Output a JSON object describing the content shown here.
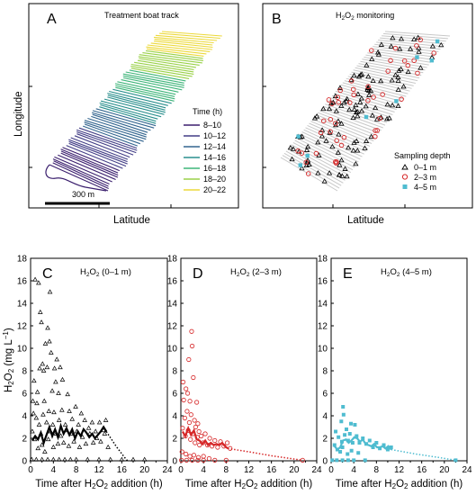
{
  "top_panels": [
    {
      "letter": "A",
      "title": "Treatment boat track",
      "xlabel": "Latitude",
      "ylabel": "Longitude",
      "legend_title": "Time  (h)",
      "scalebar_label": "300 m",
      "time_bins": [
        {
          "label": "8–10",
          "color": "#3b1f6e"
        },
        {
          "label": "10–12",
          "color": "#423d86"
        },
        {
          "label": "12–14",
          "color": "#33658f"
        },
        {
          "label": "14–16",
          "color": "#2a8f8d"
        },
        {
          "label": "16–18",
          "color": "#3fb57a"
        },
        {
          "label": "18–20",
          "color": "#9ad149"
        },
        {
          "label": "20–22",
          "color": "#ecd93a"
        }
      ]
    },
    {
      "letter": "B",
      "title_main": "H",
      "title_sub1": "2",
      "title_mid": "O",
      "title_sub2": "2",
      "title_rest": " monitoring",
      "xlabel": "Latitude",
      "legend_title": "Sampling depth",
      "depths": [
        {
          "label": "0–1 m",
          "marker": "triangle",
          "color": "#000000"
        },
        {
          "label": "2–3 m",
          "marker": "circle",
          "color": "#d62728"
        },
        {
          "label": "4–5 m",
          "marker": "square",
          "color": "#4fbcd0"
        }
      ]
    }
  ],
  "chart_data": [
    {
      "type": "scatter",
      "panel": "C",
      "title": "H2O2 (0–1 m)",
      "ylabel": "H2O2 (mg L−1)",
      "xlabel": "Time after H2O2 addition (h)",
      "xlim": [
        0,
        24
      ],
      "ylim": [
        0,
        18
      ],
      "color": "#000000",
      "marker": "triangle",
      "points": [
        [
          0.8,
          16.1
        ],
        [
          1.4,
          15.8
        ],
        [
          1.7,
          13.2
        ],
        [
          1.9,
          12.3
        ],
        [
          3.4,
          15.0
        ],
        [
          3.0,
          11.8
        ],
        [
          2.6,
          10.4
        ],
        [
          3.3,
          10.6
        ],
        [
          3.6,
          9.6
        ],
        [
          2.1,
          8.6
        ],
        [
          2.3,
          8.0
        ],
        [
          1.6,
          8.2
        ],
        [
          2.9,
          8.3
        ],
        [
          0.6,
          7.1
        ],
        [
          4.2,
          8.2
        ],
        [
          4.6,
          9.0
        ],
        [
          4.4,
          7.0
        ],
        [
          5.2,
          8.3
        ],
        [
          5.6,
          7.2
        ],
        [
          6.5,
          5.9
        ],
        [
          1.2,
          6.1
        ],
        [
          0.4,
          5.3
        ],
        [
          1.1,
          5.1
        ],
        [
          3.8,
          6.2
        ],
        [
          4.9,
          6.0
        ],
        [
          2.4,
          5.3
        ],
        [
          0.5,
          4.2
        ],
        [
          1.0,
          3.8
        ],
        [
          1.5,
          3.2
        ],
        [
          2.2,
          4.1
        ],
        [
          2.8,
          3.4
        ],
        [
          3.2,
          4.4
        ],
        [
          3.9,
          3.2
        ],
        [
          4.1,
          4.3
        ],
        [
          5.0,
          3.6
        ],
        [
          5.5,
          4.5
        ],
        [
          6.1,
          3.2
        ],
        [
          6.8,
          4.4
        ],
        [
          7.3,
          3.7
        ],
        [
          7.9,
          4.8
        ],
        [
          8.4,
          3.2
        ],
        [
          8.9,
          4.2
        ],
        [
          9.5,
          3.6
        ],
        [
          10.2,
          2.9
        ],
        [
          10.8,
          3.4
        ],
        [
          11.4,
          2.6
        ],
        [
          12.1,
          3.4
        ],
        [
          12.8,
          2.7
        ],
        [
          13.2,
          3.6
        ],
        [
          0.3,
          2.6
        ],
        [
          0.7,
          1.9
        ],
        [
          1.3,
          1.1
        ],
        [
          1.8,
          2.4
        ],
        [
          2.0,
          1.4
        ],
        [
          2.5,
          0.8
        ],
        [
          3.1,
          1.9
        ],
        [
          3.5,
          2.6
        ],
        [
          4.0,
          1.2
        ],
        [
          4.5,
          2.4
        ],
        [
          4.8,
          1.5
        ],
        [
          5.3,
          2.2
        ],
        [
          5.8,
          1.6
        ],
        [
          6.3,
          2.7
        ],
        [
          6.7,
          1.3
        ],
        [
          7.1,
          2.4
        ],
        [
          7.6,
          1.7
        ],
        [
          8.1,
          2.6
        ],
        [
          8.6,
          1.2
        ],
        [
          9.1,
          2.1
        ],
        [
          9.7,
          1.5
        ],
        [
          10.4,
          2.4
        ],
        [
          11.0,
          1.6
        ],
        [
          11.6,
          2.0
        ],
        [
          12.3,
          1.7
        ],
        [
          13.0,
          2.4
        ],
        [
          13.6,
          1.2
        ],
        [
          0.2,
          0.1
        ],
        [
          1.0,
          0.1
        ],
        [
          2.0,
          0.1
        ],
        [
          3.0,
          0.1
        ],
        [
          4.0,
          0.1
        ],
        [
          5.0,
          0.1
        ],
        [
          6.0,
          0.1
        ],
        [
          7.0,
          0.1
        ],
        [
          8.0,
          0.1
        ],
        [
          10.0,
          0.1
        ],
        [
          12.0,
          0.1
        ],
        [
          14.0,
          0.1
        ],
        [
          16.0,
          0.1
        ],
        [
          18.0,
          0.1
        ],
        [
          20.0,
          0.1
        ]
      ],
      "mean_line": [
        [
          0.3,
          1.8
        ],
        [
          0.8,
          2.2
        ],
        [
          1.3,
          1.9
        ],
        [
          1.8,
          2.5
        ],
        [
          2.3,
          1.6
        ],
        [
          2.8,
          2.3
        ],
        [
          3.3,
          3.0
        ],
        [
          3.8,
          2.2
        ],
        [
          4.3,
          2.8
        ],
        [
          4.8,
          2.1
        ],
        [
          5.3,
          3.1
        ],
        [
          5.8,
          2.4
        ],
        [
          6.3,
          2.9
        ],
        [
          6.8,
          2.3
        ],
        [
          7.3,
          2.8
        ],
        [
          7.8,
          2.0
        ],
        [
          8.3,
          2.6
        ],
        [
          8.8,
          2.2
        ],
        [
          9.3,
          2.8
        ],
        [
          9.8,
          2.5
        ],
        [
          10.3,
          2.1
        ],
        [
          10.8,
          2.4
        ],
        [
          11.3,
          2.0
        ],
        [
          11.8,
          2.3
        ],
        [
          12.3,
          2.6
        ],
        [
          12.8,
          3.0
        ],
        [
          13.3,
          2.6
        ]
      ],
      "trend_line": [
        [
          13.3,
          2.6
        ],
        [
          15.0,
          1.3
        ],
        [
          16.5,
          0.3
        ],
        [
          17.0,
          0.0
        ]
      ]
    },
    {
      "type": "scatter",
      "panel": "D",
      "title": "H2O2 (2–3 m)",
      "xlabel": "Time after H2O2 addition (h)",
      "xlim": [
        0,
        24
      ],
      "ylim": [
        0,
        18
      ],
      "color": "#d62728",
      "marker": "circle",
      "points": [
        [
          1.9,
          11.5
        ],
        [
          2.0,
          10.2
        ],
        [
          1.4,
          9.0
        ],
        [
          0.4,
          7.0
        ],
        [
          0.9,
          6.4
        ],
        [
          0.5,
          5.4
        ],
        [
          1.2,
          6.0
        ],
        [
          2.2,
          7.4
        ],
        [
          1.6,
          5.3
        ],
        [
          2.8,
          5.2
        ],
        [
          0.7,
          3.8
        ],
        [
          1.1,
          4.4
        ],
        [
          1.5,
          3.4
        ],
        [
          1.8,
          4.1
        ],
        [
          2.4,
          3.6
        ],
        [
          2.6,
          3.0
        ],
        [
          3.0,
          3.3
        ],
        [
          3.2,
          2.6
        ],
        [
          0.3,
          2.9
        ],
        [
          0.8,
          2.2
        ],
        [
          1.3,
          2.7
        ],
        [
          1.7,
          1.9
        ],
        [
          2.1,
          2.4
        ],
        [
          2.5,
          1.6
        ],
        [
          2.9,
          2.1
        ],
        [
          3.3,
          1.4
        ],
        [
          3.6,
          2.2
        ],
        [
          3.9,
          1.6
        ],
        [
          4.3,
          2.4
        ],
        [
          4.7,
          1.4
        ],
        [
          5.1,
          2.0
        ],
        [
          5.5,
          1.3
        ],
        [
          6.0,
          1.8
        ],
        [
          6.5,
          1.2
        ],
        [
          7.0,
          1.7
        ],
        [
          7.6,
          1.3
        ],
        [
          8.2,
          1.6
        ],
        [
          8.7,
          1.1
        ],
        [
          0.2,
          0.8
        ],
        [
          0.9,
          0.6
        ],
        [
          1.6,
          0.4
        ],
        [
          2.3,
          0.5
        ],
        [
          3.1,
          0.3
        ],
        [
          4.0,
          0.4
        ],
        [
          5.0,
          0.2
        ],
        [
          0.1,
          0.05
        ],
        [
          1.0,
          0.05
        ],
        [
          2.0,
          0.05
        ],
        [
          3.0,
          0.05
        ],
        [
          4.0,
          0.05
        ],
        [
          6.0,
          0.05
        ],
        [
          8.0,
          0.05
        ],
        [
          21.5,
          0.05
        ]
      ],
      "mean_line": [
        [
          0.3,
          2.6
        ],
        [
          0.8,
          2.2
        ],
        [
          1.3,
          2.9
        ],
        [
          1.8,
          2.3
        ],
        [
          2.3,
          2.7
        ],
        [
          2.8,
          1.9
        ],
        [
          3.3,
          1.8
        ],
        [
          3.8,
          1.5
        ],
        [
          4.3,
          1.8
        ],
        [
          4.8,
          1.4
        ],
        [
          5.3,
          1.6
        ],
        [
          5.8,
          1.4
        ],
        [
          6.3,
          1.5
        ],
        [
          6.8,
          1.4
        ],
        [
          7.3,
          1.6
        ],
        [
          7.8,
          1.3
        ],
        [
          8.3,
          1.1
        ]
      ],
      "trend_line": [
        [
          8.3,
          1.1
        ],
        [
          12.0,
          0.8
        ],
        [
          16.0,
          0.45
        ],
        [
          21.5,
          0.05
        ]
      ]
    },
    {
      "type": "scatter",
      "panel": "E",
      "title": "H2O2 (4–5 m)",
      "xlabel": "Time after H2O2 addition (h)",
      "xlim": [
        0,
        24
      ],
      "ylim": [
        0,
        18
      ],
      "color": "#4fbcd0",
      "marker": "square",
      "points": [
        [
          2.1,
          4.8
        ],
        [
          2.2,
          4.1
        ],
        [
          1.8,
          3.5
        ],
        [
          3.5,
          3.3
        ],
        [
          4.2,
          3.2
        ],
        [
          2.7,
          2.8
        ],
        [
          0.8,
          2.6
        ],
        [
          1.3,
          2.1
        ],
        [
          1.9,
          1.7
        ],
        [
          2.4,
          2.3
        ],
        [
          3.0,
          1.8
        ],
        [
          3.3,
          2.4
        ],
        [
          3.8,
          1.6
        ],
        [
          4.5,
          2.2
        ],
        [
          5.0,
          1.6
        ],
        [
          5.6,
          2.0
        ],
        [
          6.2,
          1.5
        ],
        [
          6.8,
          1.8
        ],
        [
          7.4,
          1.2
        ],
        [
          8.0,
          1.6
        ],
        [
          8.6,
          1.1
        ],
        [
          9.3,
          1.4
        ],
        [
          10.0,
          1.0
        ],
        [
          10.6,
          1.2
        ],
        [
          0.6,
          1.4
        ],
        [
          1.1,
          1.0
        ],
        [
          1.6,
          0.8
        ],
        [
          2.0,
          1.2
        ],
        [
          2.9,
          0.6
        ],
        [
          3.6,
          0.9
        ],
        [
          4.8,
          0.7
        ],
        [
          0.2,
          0.05
        ],
        [
          1.0,
          0.05
        ],
        [
          2.0,
          0.05
        ],
        [
          3.0,
          0.05
        ],
        [
          4.0,
          0.05
        ],
        [
          6.0,
          0.05
        ],
        [
          22.0,
          0.05
        ]
      ],
      "mean_line": [
        [
          0.6,
          1.3
        ],
        [
          1.1,
          1.0
        ],
        [
          1.6,
          1.2
        ],
        [
          2.1,
          1.8
        ],
        [
          2.6,
          1.9
        ],
        [
          3.1,
          1.6
        ],
        [
          3.6,
          1.8
        ],
        [
          4.1,
          2.1
        ],
        [
          4.6,
          2.0
        ],
        [
          5.1,
          1.7
        ],
        [
          5.6,
          1.9
        ],
        [
          6.1,
          1.5
        ],
        [
          6.6,
          1.4
        ],
        [
          7.1,
          1.3
        ],
        [
          7.6,
          1.5
        ],
        [
          8.1,
          1.2
        ],
        [
          8.6,
          1.2
        ],
        [
          9.1,
          1.3
        ],
        [
          9.6,
          1.1
        ],
        [
          10.1,
          1.3
        ],
        [
          10.6,
          1.0
        ]
      ],
      "trend_line": [
        [
          10.6,
          1.0
        ],
        [
          15.0,
          0.6
        ],
        [
          19.0,
          0.3
        ],
        [
          22.0,
          0.05
        ]
      ]
    }
  ],
  "shared_axes": {
    "y_ticks": [
      "0",
      "2",
      "4",
      "6",
      "8",
      "10",
      "12",
      "14",
      "16",
      "18"
    ],
    "x_ticks": [
      "0",
      "4",
      "8",
      "12",
      "16",
      "20",
      "24"
    ],
    "ylabel_prefix": "H",
    "ylabel_sub": "2",
    "ylabel_mid": "O",
    "ylabel_sub2": "2",
    "ylabel_unit": " (mg L",
    "ylabel_sup": "−1",
    "ylabel_close": ")",
    "xlabel_a": "Time after H",
    "xlabel_sub": "2",
    "xlabel_b": "O",
    "xlabel_sub2": "2",
    "xlabel_c": " addition (h)"
  },
  "panel_titles": {
    "C": {
      "letter": "C",
      "depth": "(0–1 m)"
    },
    "D": {
      "letter": "D",
      "depth": "(2–3 m)"
    },
    "E": {
      "letter": "E",
      "depth": "(4–5 m)"
    }
  }
}
